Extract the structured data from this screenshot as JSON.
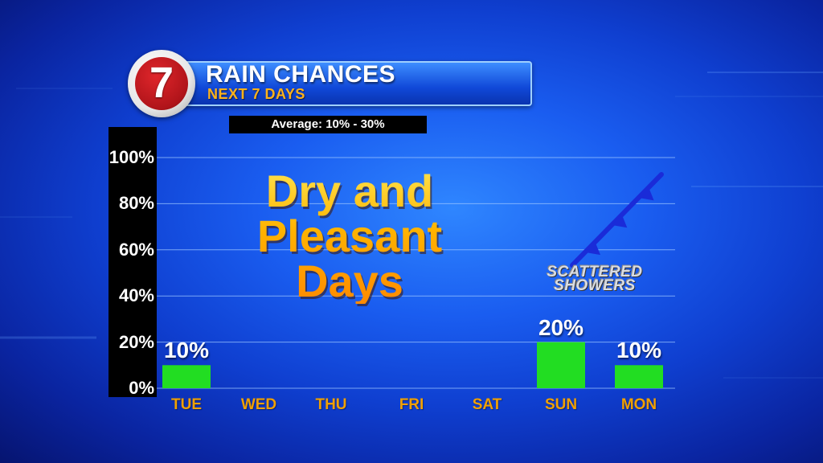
{
  "header": {
    "logo_text": "7",
    "title": "RAIN CHANCES",
    "subtitle": "NEXT 7 DAYS",
    "average_note": "Average: 10% - 30%"
  },
  "annotations": {
    "headline_lines": [
      "Dry and",
      "Pleasant",
      "Days"
    ],
    "front_label_lines": [
      "SCATTERED",
      "SHOWERS"
    ]
  },
  "colors": {
    "bar": "#22dd22",
    "day_label": "#f0a000",
    "headline": "#ffb000",
    "front": "#1a2bd8"
  },
  "chart_data": {
    "type": "bar",
    "title": "RAIN CHANCES",
    "categories": [
      "TUE",
      "WED",
      "THU",
      "FRI",
      "SAT",
      "SUN",
      "MON"
    ],
    "values": [
      10,
      0,
      0,
      0,
      0,
      20,
      10
    ],
    "value_labels": [
      "10%",
      "",
      "",
      "",
      "",
      "20%",
      "10%"
    ],
    "ylim": [
      0,
      100
    ],
    "yticks": [
      "0%",
      "20%",
      "40%",
      "60%",
      "80%",
      "100%"
    ],
    "grid": true,
    "legend": "none"
  }
}
